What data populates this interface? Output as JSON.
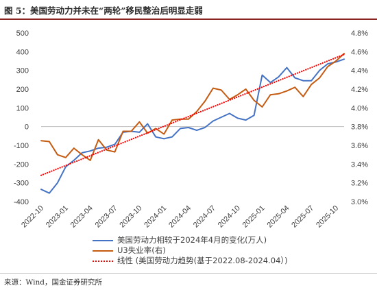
{
  "header": {
    "title": "图 5：美国劳动力并未在“两轮”移民整治后明显走弱"
  },
  "source": "来源：Wind，国金证券研究所",
  "chart_data": {
    "type": "line",
    "x": [
      "2022-10",
      "2022-11",
      "2022-12",
      "2023-01",
      "2023-02",
      "2023-03",
      "2023-04",
      "2023-05",
      "2023-06",
      "2023-07",
      "2023-08",
      "2023-09",
      "2023-10",
      "2023-11",
      "2023-12",
      "2024-01",
      "2024-02",
      "2024-03",
      "2024-04",
      "2024-05",
      "2024-06",
      "2024-07",
      "2024-08",
      "2024-09",
      "2024-10",
      "2024-11",
      "2024-12",
      "2025-01",
      "2025-02",
      "2025-03",
      "2025-04",
      "2025-05",
      "2025-06",
      "2025-07",
      "2025-08",
      "2025-09",
      "2025-10",
      "2025-11"
    ],
    "xticks": [
      "2022-10",
      "2023-01",
      "2023-04",
      "2023-07",
      "2023-10",
      "2024-01",
      "2024-04",
      "2024-07",
      "2024-10",
      "2025-01",
      "2025-04",
      "2025-07",
      "2025-10"
    ],
    "y_left": {
      "ticks": [
        "500",
        "400",
        "300",
        "200",
        "100",
        "0",
        "-100",
        "-200",
        "-300",
        "-400"
      ],
      "lim": [
        -400,
        500
      ]
    },
    "y_right": {
      "ticks": [
        "4.8%",
        "4.6%",
        "4.4%",
        "4.2%",
        "4.0%",
        "3.8%",
        "3.6%",
        "3.4%",
        "3.2%",
        "3.0%"
      ],
      "lim": [
        3.0,
        4.8
      ]
    },
    "series": [
      {
        "name": "美国劳动力相较于2024年4月的变化(万人)",
        "axis": "left",
        "color": "#4472c4",
        "style": "solid",
        "values": [
          -335,
          -355,
          -300,
          -215,
          -180,
          -140,
          -130,
          -115,
          -110,
          -95,
          -30,
          -25,
          -30,
          15,
          -55,
          -65,
          -55,
          -10,
          -5,
          -20,
          -5,
          30,
          50,
          70,
          45,
          35,
          60,
          275,
          235,
          265,
          315,
          260,
          245,
          245,
          300,
          335,
          345,
          360
        ]
      },
      {
        "name": "U3失业率(右)",
        "axis": "right",
        "color": "#c55a11",
        "style": "solid",
        "values": [
          3.65,
          3.64,
          3.5,
          3.47,
          3.57,
          3.5,
          3.44,
          3.66,
          3.55,
          3.53,
          3.75,
          3.75,
          3.85,
          3.73,
          3.78,
          3.72,
          3.87,
          3.88,
          3.88,
          3.96,
          4.07,
          4.21,
          4.19,
          4.09,
          4.14,
          4.2,
          4.08,
          4.01,
          4.14,
          4.15,
          4.18,
          4.22,
          4.12,
          4.25,
          4.32,
          4.44,
          4.5,
          4.58
        ]
      },
      {
        "name": "线性 (美国劳动力趋势(基于2022.08-2024.04）)",
        "axis": "left",
        "color": "#ff0000",
        "style": "dotted",
        "values_endpoints": [
          -260,
          385
        ]
      }
    ]
  },
  "legend": {
    "item1": "美国劳动力相较于2024年4月的变化(万人)",
    "item2": "U3失业率(右)",
    "item3": "线性 (美国劳动力趋势(基于2022.08-2024.04）)"
  }
}
